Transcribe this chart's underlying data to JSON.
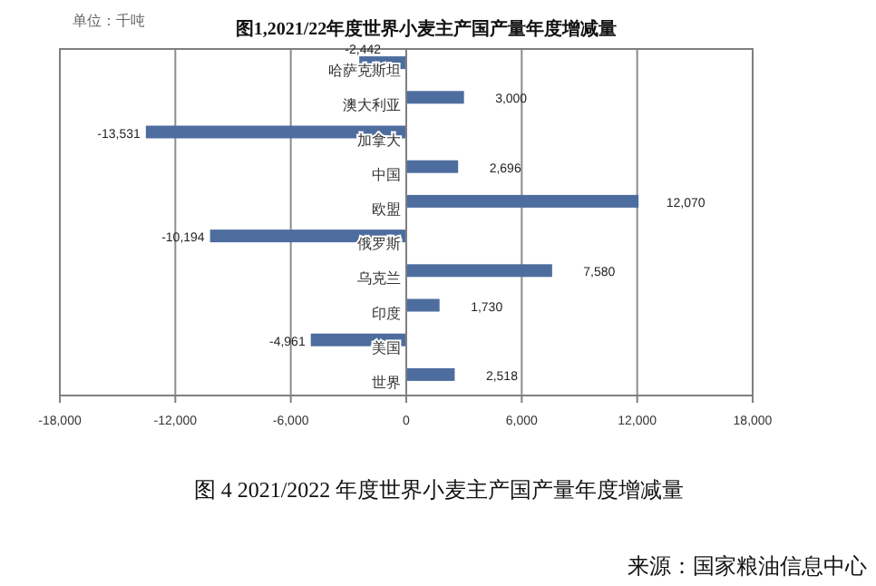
{
  "chart_data": {
    "type": "bar",
    "orientation": "horizontal",
    "title": "图1,2021/22年度世界小麦主产国产量年度增减量",
    "categories": [
      "哈萨克斯坦",
      "澳大利亚",
      "加拿大",
      "中国",
      "欧盟",
      "俄罗斯",
      "乌克兰",
      "印度",
      "美国",
      "世界"
    ],
    "values": [
      -2442,
      3000,
      -13531,
      2696,
      12070,
      -10194,
      7580,
      1730,
      -4961,
      2518
    ],
    "value_labels": [
      "-2,442",
      "3,000",
      "-13,531",
      "2,696",
      "12,070",
      "-10,194",
      "7,580",
      "1,730",
      "-4,961",
      "2,518"
    ],
    "color": "#4e6d9f",
    "xlim": [
      -18000,
      18000
    ],
    "xticks": [
      {
        "value": -18000,
        "label": "-18,000"
      },
      {
        "value": -12000,
        "label": "-12,000"
      },
      {
        "value": -6000,
        "label": "-6,000"
      },
      0,
      {
        "value": 6000,
        "label": "6,000"
      },
      {
        "value": 12000,
        "label": "12,000"
      },
      {
        "value": 18000,
        "label": "18,000"
      }
    ],
    "grid": "x",
    "annotations": [
      "单位：千吨",
      "图 4 2021/2022 年度世界小麦主产国产量年度增减量",
      "来源：国家粮油信息中心"
    ]
  }
}
